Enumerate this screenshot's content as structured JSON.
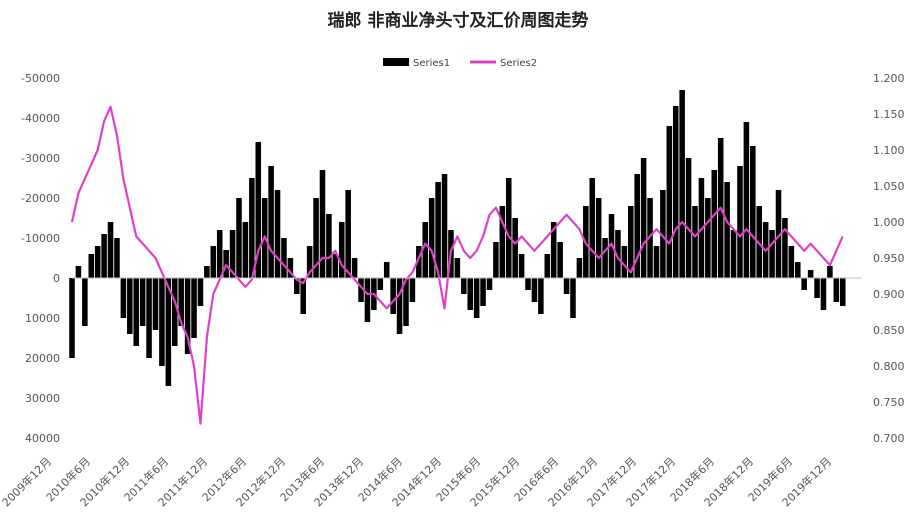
{
  "chart_data": {
    "type": "bar+line",
    "title": "瑞郎 非商业净头寸及汇价周图走势",
    "legend": {
      "position": "top",
      "entries": [
        "Series1",
        "Series2"
      ]
    },
    "y_left": {
      "ticks": [
        "-50000",
        "-40000",
        "-30000",
        "-20000",
        "-10000",
        "0",
        "10000",
        "20000",
        "30000",
        "40000"
      ],
      "range": [
        -50000,
        40000
      ],
      "inverted": true
    },
    "y_right": {
      "ticks": [
        "1.200",
        "1.150",
        "1.100",
        "1.050",
        "1.000",
        "0.950",
        "0.900",
        "0.850",
        "0.800",
        "0.750",
        "0.700"
      ],
      "range": [
        0.7,
        1.2
      ]
    },
    "x_ticks": [
      "2009年12月",
      "2010年6月",
      "2010年12月",
      "2011年6月",
      "2011年12月",
      "2012年6月",
      "2012年12月",
      "2013年6月",
      "2013年12月",
      "2014年6月",
      "2014年12月",
      "2015年6月",
      "2015年12月",
      "2016年6月",
      "2016年12月",
      "2017年12月",
      "2017年12月",
      "2018年6月",
      "2018年12月",
      "2019年6月",
      "2019年12月"
    ],
    "x_range": [
      "2009-12",
      "2020-03"
    ],
    "grid": false,
    "series": [
      {
        "name": "Series1",
        "kind": "bar",
        "axis": "left",
        "color": "#000000",
        "points": [
          [
            "2009-12",
            20000
          ],
          [
            "2010-01",
            -3000
          ],
          [
            "2010-02",
            12000
          ],
          [
            "2010-03",
            -6000
          ],
          [
            "2010-04",
            -8000
          ],
          [
            "2010-05",
            -11000
          ],
          [
            "2010-06",
            -14000
          ],
          [
            "2010-07",
            -10000
          ],
          [
            "2010-08",
            10000
          ],
          [
            "2010-09",
            14000
          ],
          [
            "2010-10",
            17000
          ],
          [
            "2010-11",
            12000
          ],
          [
            "2010-12",
            20000
          ],
          [
            "2011-01",
            13000
          ],
          [
            "2011-02",
            22000
          ],
          [
            "2011-03",
            27000
          ],
          [
            "2011-04",
            17000
          ],
          [
            "2011-05",
            12000
          ],
          [
            "2011-06",
            19000
          ],
          [
            "2011-07",
            15000
          ],
          [
            "2011-08",
            7000
          ],
          [
            "2011-09",
            -3000
          ],
          [
            "2011-10",
            -8000
          ],
          [
            "2011-11",
            -12000
          ],
          [
            "2011-12",
            -7000
          ],
          [
            "2012-01",
            -12000
          ],
          [
            "2012-02",
            -20000
          ],
          [
            "2012-03",
            -14000
          ],
          [
            "2012-04",
            -25000
          ],
          [
            "2012-05",
            -34000
          ],
          [
            "2012-06",
            -20000
          ],
          [
            "2012-07",
            -28000
          ],
          [
            "2012-08",
            -22000
          ],
          [
            "2012-09",
            -10000
          ],
          [
            "2012-10",
            -5000
          ],
          [
            "2012-11",
            4000
          ],
          [
            "2012-12",
            9000
          ],
          [
            "2013-01",
            -8000
          ],
          [
            "2013-02",
            -20000
          ],
          [
            "2013-03",
            -27000
          ],
          [
            "2013-04",
            -16000
          ],
          [
            "2013-05",
            -6000
          ],
          [
            "2013-06",
            -14000
          ],
          [
            "2013-07",
            -22000
          ],
          [
            "2013-08",
            -5000
          ],
          [
            "2013-09",
            6000
          ],
          [
            "2013-10",
            11000
          ],
          [
            "2013-11",
            8000
          ],
          [
            "2013-12",
            3000
          ],
          [
            "2014-01",
            -4000
          ],
          [
            "2014-02",
            9000
          ],
          [
            "2014-03",
            14000
          ],
          [
            "2014-04",
            12000
          ],
          [
            "2014-05",
            6000
          ],
          [
            "2014-06",
            -8000
          ],
          [
            "2014-07",
            -14000
          ],
          [
            "2014-08",
            -20000
          ],
          [
            "2014-09",
            -24000
          ],
          [
            "2014-10",
            -26000
          ],
          [
            "2014-11",
            -12000
          ],
          [
            "2014-12",
            -5000
          ],
          [
            "2015-01",
            4000
          ],
          [
            "2015-02",
            8000
          ],
          [
            "2015-03",
            10000
          ],
          [
            "2015-04",
            7000
          ],
          [
            "2015-05",
            3000
          ],
          [
            "2015-06",
            -9000
          ],
          [
            "2015-07",
            -18000
          ],
          [
            "2015-08",
            -25000
          ],
          [
            "2015-09",
            -15000
          ],
          [
            "2015-10",
            -6000
          ],
          [
            "2015-11",
            3000
          ],
          [
            "2015-12",
            6000
          ],
          [
            "2016-01",
            9000
          ],
          [
            "2016-02",
            -6000
          ],
          [
            "2016-03",
            -14000
          ],
          [
            "2016-04",
            -9000
          ],
          [
            "2016-05",
            4000
          ],
          [
            "2016-06",
            10000
          ],
          [
            "2016-07",
            -5000
          ],
          [
            "2016-08",
            -18000
          ],
          [
            "2016-09",
            -25000
          ],
          [
            "2016-10",
            -20000
          ],
          [
            "2016-11",
            -10000
          ],
          [
            "2016-12",
            -16000
          ],
          [
            "2017-01",
            -12000
          ],
          [
            "2017-02",
            -8000
          ],
          [
            "2017-03",
            -18000
          ],
          [
            "2017-04",
            -26000
          ],
          [
            "2017-05",
            -30000
          ],
          [
            "2017-06",
            -20000
          ],
          [
            "2017-07",
            -8000
          ],
          [
            "2017-08",
            -22000
          ],
          [
            "2017-09",
            -38000
          ],
          [
            "2017-10",
            -43000
          ],
          [
            "2017-11",
            -47000
          ],
          [
            "2017-12",
            -30000
          ],
          [
            "2018-01",
            -18000
          ],
          [
            "2018-02",
            -25000
          ],
          [
            "2018-03",
            -20000
          ],
          [
            "2018-04",
            -27000
          ],
          [
            "2018-05",
            -35000
          ],
          [
            "2018-06",
            -24000
          ],
          [
            "2018-07",
            -12000
          ],
          [
            "2018-08",
            -28000
          ],
          [
            "2018-09",
            -39000
          ],
          [
            "2018-10",
            -33000
          ],
          [
            "2018-11",
            -18000
          ],
          [
            "2018-12",
            -14000
          ],
          [
            "2019-01",
            -12000
          ],
          [
            "2019-02",
            -22000
          ],
          [
            "2019-03",
            -15000
          ],
          [
            "2019-04",
            -8000
          ],
          [
            "2019-05",
            -4000
          ],
          [
            "2019-06",
            3000
          ],
          [
            "2019-07",
            -2000
          ],
          [
            "2019-08",
            5000
          ],
          [
            "2019-09",
            8000
          ],
          [
            "2019-10",
            -3000
          ],
          [
            "2019-11",
            6000
          ],
          [
            "2019-12",
            7000
          ]
        ]
      },
      {
        "name": "Series2",
        "kind": "line",
        "axis": "right",
        "color": "#e040c8",
        "points": [
          [
            "2009-12",
            1.0
          ],
          [
            "2010-01",
            1.04
          ],
          [
            "2010-02",
            1.06
          ],
          [
            "2010-03",
            1.08
          ],
          [
            "2010-04",
            1.1
          ],
          [
            "2010-05",
            1.14
          ],
          [
            "2010-06",
            1.16
          ],
          [
            "2010-07",
            1.12
          ],
          [
            "2010-08",
            1.06
          ],
          [
            "2010-09",
            1.02
          ],
          [
            "2010-10",
            0.98
          ],
          [
            "2010-11",
            0.97
          ],
          [
            "2010-12",
            0.96
          ],
          [
            "2011-01",
            0.95
          ],
          [
            "2011-02",
            0.93
          ],
          [
            "2011-03",
            0.91
          ],
          [
            "2011-04",
            0.89
          ],
          [
            "2011-05",
            0.86
          ],
          [
            "2011-06",
            0.84
          ],
          [
            "2011-07",
            0.8
          ],
          [
            "2011-08",
            0.72
          ],
          [
            "2011-09",
            0.84
          ],
          [
            "2011-10",
            0.9
          ],
          [
            "2011-11",
            0.92
          ],
          [
            "2011-12",
            0.94
          ],
          [
            "2012-01",
            0.93
          ],
          [
            "2012-02",
            0.92
          ],
          [
            "2012-03",
            0.91
          ],
          [
            "2012-04",
            0.92
          ],
          [
            "2012-05",
            0.96
          ],
          [
            "2012-06",
            0.98
          ],
          [
            "2012-07",
            0.96
          ],
          [
            "2012-08",
            0.95
          ],
          [
            "2012-09",
            0.94
          ],
          [
            "2012-10",
            0.93
          ],
          [
            "2012-11",
            0.92
          ],
          [
            "2012-12",
            0.915
          ],
          [
            "2013-01",
            0.93
          ],
          [
            "2013-02",
            0.94
          ],
          [
            "2013-03",
            0.95
          ],
          [
            "2013-04",
            0.95
          ],
          [
            "2013-05",
            0.96
          ],
          [
            "2013-06",
            0.94
          ],
          [
            "2013-07",
            0.93
          ],
          [
            "2013-08",
            0.92
          ],
          [
            "2013-09",
            0.91
          ],
          [
            "2013-10",
            0.9
          ],
          [
            "2013-11",
            0.9
          ],
          [
            "2013-12",
            0.89
          ],
          [
            "2014-01",
            0.88
          ],
          [
            "2014-02",
            0.89
          ],
          [
            "2014-03",
            0.9
          ],
          [
            "2014-04",
            0.92
          ],
          [
            "2014-05",
            0.93
          ],
          [
            "2014-06",
            0.95
          ],
          [
            "2014-07",
            0.97
          ],
          [
            "2014-08",
            0.96
          ],
          [
            "2014-09",
            0.93
          ],
          [
            "2014-10",
            0.88
          ],
          [
            "2014-11",
            0.96
          ],
          [
            "2014-12",
            0.98
          ],
          [
            "2015-01",
            0.96
          ],
          [
            "2015-02",
            0.95
          ],
          [
            "2015-03",
            0.96
          ],
          [
            "2015-04",
            0.98
          ],
          [
            "2015-05",
            1.01
          ],
          [
            "2015-06",
            1.02
          ],
          [
            "2015-07",
            1.0
          ],
          [
            "2015-08",
            0.98
          ],
          [
            "2015-09",
            0.97
          ],
          [
            "2015-10",
            0.98
          ],
          [
            "2015-11",
            0.97
          ],
          [
            "2015-12",
            0.96
          ],
          [
            "2016-01",
            0.97
          ],
          [
            "2016-02",
            0.98
          ],
          [
            "2016-03",
            0.99
          ],
          [
            "2016-04",
            1.0
          ],
          [
            "2016-05",
            1.01
          ],
          [
            "2016-06",
            1.0
          ],
          [
            "2016-07",
            0.99
          ],
          [
            "2016-08",
            0.97
          ],
          [
            "2016-09",
            0.96
          ],
          [
            "2016-10",
            0.95
          ],
          [
            "2016-11",
            0.96
          ],
          [
            "2016-12",
            0.97
          ],
          [
            "2017-01",
            0.95
          ],
          [
            "2017-02",
            0.94
          ],
          [
            "2017-03",
            0.93
          ],
          [
            "2017-04",
            0.95
          ],
          [
            "2017-05",
            0.97
          ],
          [
            "2017-06",
            0.98
          ],
          [
            "2017-07",
            0.99
          ],
          [
            "2017-08",
            0.98
          ],
          [
            "2017-09",
            0.97
          ],
          [
            "2017-10",
            0.99
          ],
          [
            "2017-11",
            1.0
          ],
          [
            "2017-12",
            0.99
          ],
          [
            "2018-01",
            0.98
          ],
          [
            "2018-02",
            0.99
          ],
          [
            "2018-03",
            1.0
          ],
          [
            "2018-04",
            1.01
          ],
          [
            "2018-05",
            1.02
          ],
          [
            "2018-06",
            1.0
          ],
          [
            "2018-07",
            0.99
          ],
          [
            "2018-08",
            0.98
          ],
          [
            "2018-09",
            0.99
          ],
          [
            "2018-10",
            0.98
          ],
          [
            "2018-11",
            0.97
          ],
          [
            "2018-12",
            0.96
          ],
          [
            "2019-01",
            0.97
          ],
          [
            "2019-02",
            0.98
          ],
          [
            "2019-03",
            0.99
          ],
          [
            "2019-04",
            0.98
          ],
          [
            "2019-05",
            0.97
          ],
          [
            "2019-06",
            0.96
          ],
          [
            "2019-07",
            0.97
          ],
          [
            "2019-08",
            0.96
          ],
          [
            "2019-09",
            0.95
          ],
          [
            "2019-10",
            0.94
          ],
          [
            "2019-11",
            0.96
          ],
          [
            "2019-12",
            0.98
          ]
        ]
      }
    ]
  }
}
